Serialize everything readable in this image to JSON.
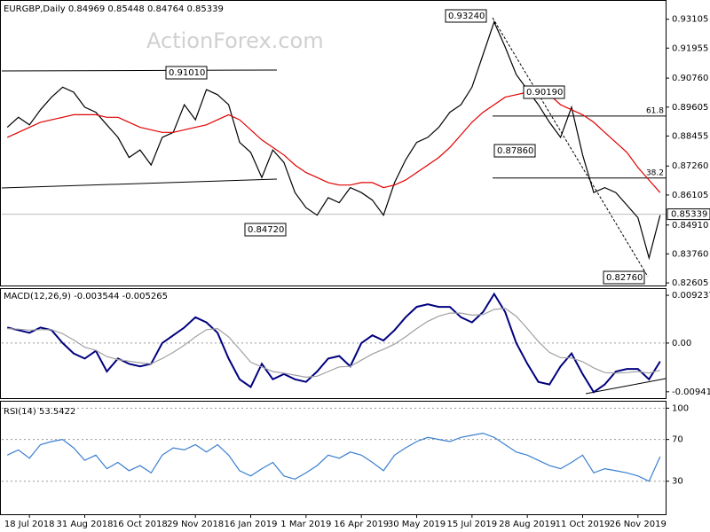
{
  "watermark": "ActionForex.com",
  "chart_data": [
    {
      "type": "line",
      "title": "EURGBP,Daily  0.84969 0.85448 0.84764 0.85339",
      "ylim": [
        0.825,
        0.9373
      ],
      "yticks": [
        0.93105,
        0.91955,
        {
          "value": 0.9076,
          "label": "0.90760"
        },
        0.89605,
        0.88455,
        {
          "value": 0.8726,
          "label": "0.87260"
        },
        0.86105,
        {
          "value": 0.8491,
          "label": "0.84910"
        },
        {
          "value": 0.8376,
          "label": "0.83760"
        },
        0.82605
      ],
      "last": 0.85339,
      "series": [
        {
          "name": "EURGBP",
          "color": "#000000",
          "values": [
            0.888,
            0.892,
            0.889,
            0.895,
            0.9,
            0.904,
            0.902,
            0.896,
            0.894,
            0.889,
            0.884,
            0.876,
            0.879,
            0.873,
            0.884,
            0.886,
            0.897,
            0.891,
            0.903,
            0.901,
            0.897,
            0.882,
            0.878,
            0.868,
            0.879,
            0.874,
            0.862,
            0.856,
            0.853,
            0.86,
            0.858,
            0.864,
            0.862,
            0.859,
            0.853,
            0.866,
            0.875,
            0.882,
            0.884,
            0.888,
            0.894,
            0.897,
            0.904,
            0.917,
            0.93,
            0.92,
            0.909,
            0.903,
            0.897,
            0.89,
            0.884,
            0.896,
            0.877,
            0.862,
            0.864,
            0.862,
            0.857,
            0.852,
            0.836,
            0.853
          ]
        },
        {
          "name": "MA",
          "color": "#e00000",
          "values": [
            0.884,
            0.886,
            0.888,
            0.89,
            0.891,
            0.892,
            0.893,
            0.893,
            0.893,
            0.892,
            0.892,
            0.89,
            0.888,
            0.887,
            0.886,
            0.886,
            0.887,
            0.888,
            0.889,
            0.891,
            0.893,
            0.891,
            0.887,
            0.883,
            0.88,
            0.877,
            0.873,
            0.87,
            0.868,
            0.866,
            0.865,
            0.865,
            0.866,
            0.866,
            0.864,
            0.865,
            0.867,
            0.87,
            0.873,
            0.876,
            0.88,
            0.885,
            0.89,
            0.894,
            0.897,
            0.9,
            0.901,
            0.902,
            0.902,
            0.901,
            0.897,
            0.895,
            0.893,
            0.89,
            0.886,
            0.882,
            0.878,
            0.872,
            0.867,
            0.862
          ]
        }
      ],
      "fib_levels": [
        {
          "label": "61.8",
          "price": 0.8925
        },
        {
          "label": "38.2",
          "price": 0.8678
        }
      ],
      "annotations": [
        {
          "value": 0.9324,
          "label": "0.93240"
        },
        {
          "value": 0.9101,
          "label": "0.91010"
        },
        {
          "value": 0.9019,
          "label": "0.90190"
        },
        {
          "value": 0.8786,
          "label": "0.87860"
        },
        {
          "value": 0.8472,
          "label": "0.84720"
        },
        {
          "value": 0.8276,
          "label": "0.82760"
        }
      ]
    },
    {
      "type": "line",
      "title": "MACD(12,26,9) -0.003544 -0.005265",
      "ylim": [
        -0.0103,
        0.0101
      ],
      "yticks": [
        0.009237,
        {
          "value": 0,
          "label": "0.00"
        },
        -0.009413
      ],
      "zero_line": true,
      "series": [
        {
          "name": "MACD",
          "color": "#000080",
          "values": [
            0.003,
            0.0025,
            0.002,
            0.003,
            0.0025,
            0.0,
            -0.002,
            -0.003,
            -0.0015,
            -0.0055,
            -0.003,
            -0.004,
            -0.0045,
            -0.004,
            0.0,
            0.0015,
            0.003,
            0.005,
            0.004,
            0.002,
            -0.003,
            -0.007,
            -0.0085,
            -0.004,
            -0.007,
            -0.006,
            -0.007,
            -0.0075,
            -0.0055,
            -0.003,
            -0.0025,
            -0.0045,
            0.0,
            0.0015,
            0.0005,
            0.0025,
            0.005,
            0.007,
            0.0075,
            0.007,
            0.007,
            0.005,
            0.004,
            0.006,
            0.0095,
            0.006,
            0.0,
            -0.004,
            -0.0075,
            -0.008,
            -0.0045,
            -0.002,
            -0.006,
            -0.0095,
            -0.008,
            -0.0055,
            -0.005,
            -0.005,
            -0.007,
            -0.003544
          ]
        },
        {
          "name": "Signal",
          "color": "#a0a0a0",
          "values": [
            0.0028,
            0.0027,
            0.0025,
            0.0026,
            0.0026,
            0.0018,
            0.0006,
            -0.0008,
            -0.0014,
            -0.0026,
            -0.0032,
            -0.0035,
            -0.0038,
            -0.004,
            -0.003,
            -0.0018,
            -0.0004,
            0.0012,
            0.0026,
            0.0028,
            0.0012,
            -0.0012,
            -0.0037,
            -0.0046,
            -0.0055,
            -0.0058,
            -0.0062,
            -0.0066,
            -0.0064,
            -0.0055,
            -0.0046,
            -0.0045,
            -0.0033,
            -0.0021,
            -0.0012,
            -0.0002,
            0.0012,
            0.0028,
            0.0042,
            0.0052,
            0.0058,
            0.0058,
            0.0054,
            0.0055,
            0.0065,
            0.0067,
            0.0052,
            0.0028,
            0.0003,
            -0.0018,
            -0.0028,
            -0.0029,
            -0.0036,
            -0.0048,
            -0.0057,
            -0.0058,
            -0.0057,
            -0.0055,
            -0.0058,
            -0.005265
          ]
        }
      ]
    },
    {
      "type": "line",
      "title": "RSI(14) 53.5422",
      "ylim": [
        0,
        102
      ],
      "yticks": [
        100,
        70,
        30
      ],
      "grid": true,
      "categories": [
        null,
        null,
        "18 Jul 2018",
        null,
        null,
        null,
        null,
        "31 Aug 2018",
        null,
        null,
        null,
        null,
        "16 Oct 2018",
        null,
        null,
        null,
        null,
        "29 Nov 2018",
        null,
        null,
        null,
        null,
        "16 Jan 2019",
        null,
        null,
        null,
        null,
        "1 Mar 2019",
        null,
        null,
        null,
        null,
        "16 Apr 2019",
        null,
        null,
        null,
        null,
        "30 May 2019",
        null,
        null,
        null,
        null,
        "15 Jul 2019",
        null,
        null,
        null,
        null,
        "28 Aug 2019",
        null,
        null,
        null,
        null,
        "11 Oct 2019",
        null,
        null,
        null,
        null,
        "26 Nov 2019",
        null,
        null
      ],
      "series": [
        {
          "name": "RSI",
          "color": "#3a7fd0",
          "values": [
            55,
            60,
            52,
            65,
            68,
            70,
            62,
            50,
            55,
            42,
            48,
            40,
            45,
            38,
            55,
            62,
            60,
            65,
            58,
            65,
            55,
            40,
            35,
            42,
            48,
            35,
            32,
            38,
            45,
            55,
            52,
            58,
            55,
            48,
            40,
            55,
            62,
            68,
            72,
            70,
            68,
            72,
            74,
            76,
            72,
            65,
            58,
            55,
            50,
            45,
            42,
            48,
            55,
            38,
            42,
            40,
            38,
            35,
            30,
            53.5422
          ]
        }
      ]
    }
  ]
}
